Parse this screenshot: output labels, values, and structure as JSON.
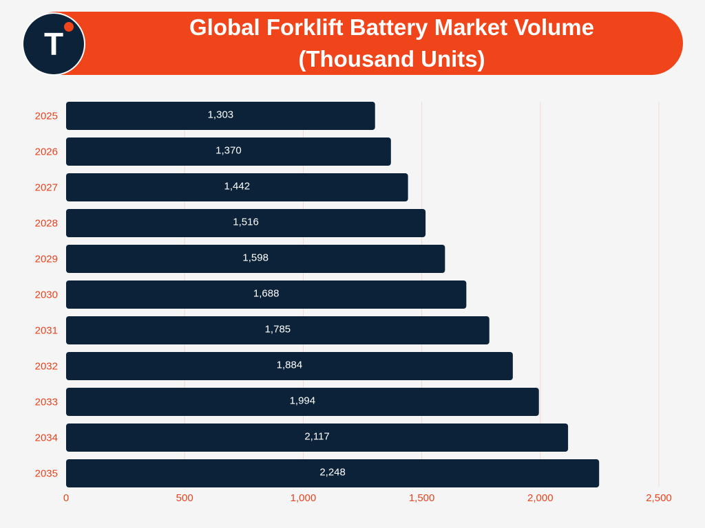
{
  "header": {
    "title_line1": "Global Forklift Battery Market Volume",
    "title_line2": "(Thousand Units)",
    "logo_letter": "T",
    "colors": {
      "banner": "#f0441b",
      "logo_bg": "#0b2239",
      "logo_dot": "#f0441b"
    }
  },
  "chart_data": {
    "type": "bar",
    "orientation": "horizontal",
    "title": "Global Forklift Battery Market Volume (Thousand Units)",
    "categories": [
      "2025",
      "2026",
      "2027",
      "2028",
      "2029",
      "2030",
      "2031",
      "2032",
      "2033",
      "2034",
      "2035"
    ],
    "values": [
      1303,
      1370,
      1442,
      1516,
      1598,
      1688,
      1785,
      1884,
      1994,
      2117,
      2248
    ],
    "value_labels": [
      "1,303",
      "1,370",
      "1,442",
      "1,516",
      "1,598",
      "1,688",
      "1,785",
      "1,884",
      "1,994",
      "2,117",
      "2,248"
    ],
    "xticks": [
      0,
      500,
      1000,
      1500,
      2000,
      2500
    ],
    "xtick_labels": [
      "0",
      "500",
      "1,000",
      "1,500",
      "2,000",
      "2,500"
    ],
    "xlim": [
      0,
      2500
    ],
    "xlabel": "",
    "ylabel": "",
    "grid": true,
    "colors": {
      "bar": "#0b2239",
      "bar_label": "#ffffff",
      "tick": "#e8431f",
      "grid": "#f2d9d4"
    }
  }
}
